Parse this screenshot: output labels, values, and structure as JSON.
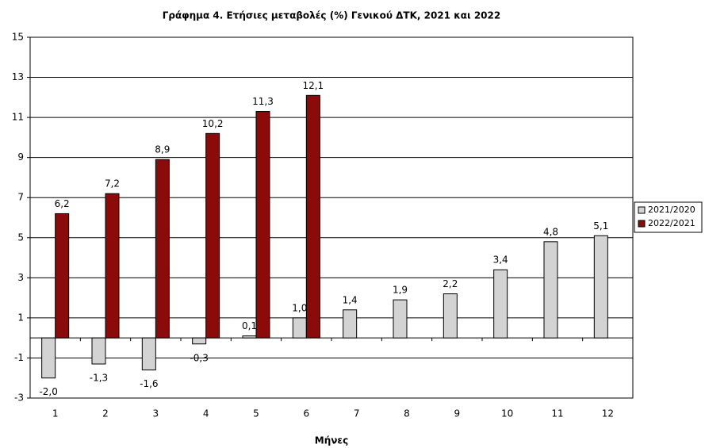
{
  "chart_data": {
    "type": "bar",
    "title": "Γράφημα 4. Ετήσιες μεταβολές (%) Γενικού ΔΤΚ, 2021 και 2022",
    "x_label": "Μήνες",
    "categories": [
      "1",
      "2",
      "3",
      "4",
      "5",
      "6",
      "7",
      "8",
      "9",
      "10",
      "11",
      "12"
    ],
    "series": [
      {
        "name": "2021/2020",
        "color": "#d3d3d3",
        "values": [
          -2.0,
          -1.3,
          -1.6,
          -0.3,
          0.1,
          1.0,
          1.4,
          1.9,
          2.2,
          3.4,
          4.8,
          5.1
        ],
        "value_labels": [
          "-2,0",
          "-1,3",
          "-1,6",
          "-0,3",
          "0,1",
          "1,0",
          "1,4",
          "1,9",
          "2,2",
          "3,4",
          "4,8",
          "5,1"
        ]
      },
      {
        "name": "2022/2021",
        "color": "#8b0a0a",
        "values": [
          6.2,
          7.2,
          8.9,
          10.2,
          11.3,
          12.1,
          null,
          null,
          null,
          null,
          null,
          null
        ],
        "value_labels": [
          "6,2",
          "7,2",
          "8,9",
          "10,2",
          "11,3",
          "12,1",
          null,
          null,
          null,
          null,
          null,
          null
        ]
      }
    ],
    "ylim": [
      -3,
      15
    ],
    "yticks": [
      -3,
      -1,
      1,
      3,
      5,
      7,
      9,
      11,
      13,
      15
    ],
    "grid": true,
    "legend": "right"
  }
}
